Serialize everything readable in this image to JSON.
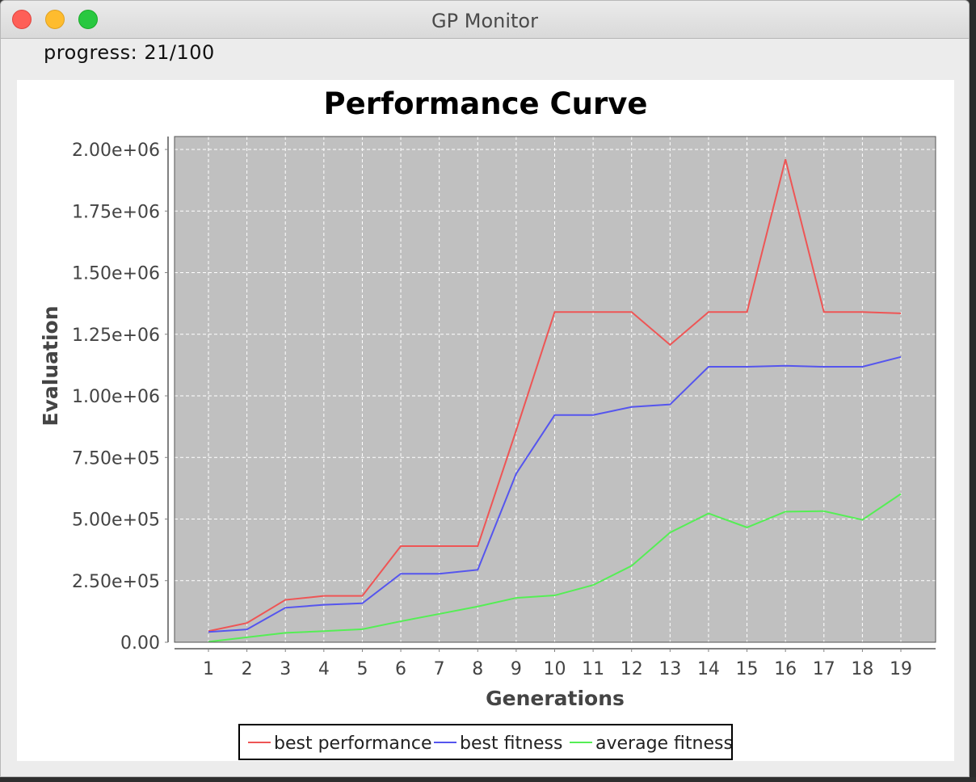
{
  "window": {
    "title": "GP Monitor"
  },
  "progress_text": "progress: 21/100",
  "chart_data": {
    "type": "line",
    "title": "Performance Curve",
    "xlabel": "Generations",
    "ylabel": "Evaluation",
    "x": [
      1,
      2,
      3,
      4,
      5,
      6,
      7,
      8,
      9,
      10,
      11,
      12,
      13,
      14,
      15,
      16,
      17,
      18,
      19
    ],
    "ylim": [
      0,
      2050000
    ],
    "yticks": [
      0,
      250000,
      500000,
      750000,
      1000000,
      1250000,
      1500000,
      1750000,
      2000000
    ],
    "ytick_labels": [
      "0.00",
      "2.50e+05",
      "5.00e+05",
      "7.50e+05",
      "1.00e+06",
      "1.25e+06",
      "1.50e+06",
      "1.75e+06",
      "2.00e+06"
    ],
    "grid": true,
    "legend_position": "bottom",
    "series": [
      {
        "name": "best performance",
        "color": "#ee5555",
        "values": [
          45000,
          78000,
          172000,
          188000,
          188000,
          390000,
          390000,
          390000,
          860000,
          1340000,
          1340000,
          1340000,
          1207000,
          1340000,
          1340000,
          1960000,
          1340000,
          1340000,
          1335000
        ]
      },
      {
        "name": "best fitness",
        "color": "#5555ee",
        "values": [
          42000,
          52000,
          140000,
          152000,
          158000,
          278000,
          278000,
          294000,
          684000,
          922000,
          922000,
          955000,
          965000,
          1118000,
          1118000,
          1122000,
          1118000,
          1118000,
          1158000
        ]
      },
      {
        "name": "average fitness",
        "color": "#55ee55",
        "values": [
          2000,
          20000,
          38000,
          45000,
          53000,
          85000,
          115000,
          145000,
          180000,
          190000,
          232000,
          310000,
          445000,
          523000,
          466000,
          530000,
          532000,
          497000,
          602000
        ]
      }
    ]
  }
}
